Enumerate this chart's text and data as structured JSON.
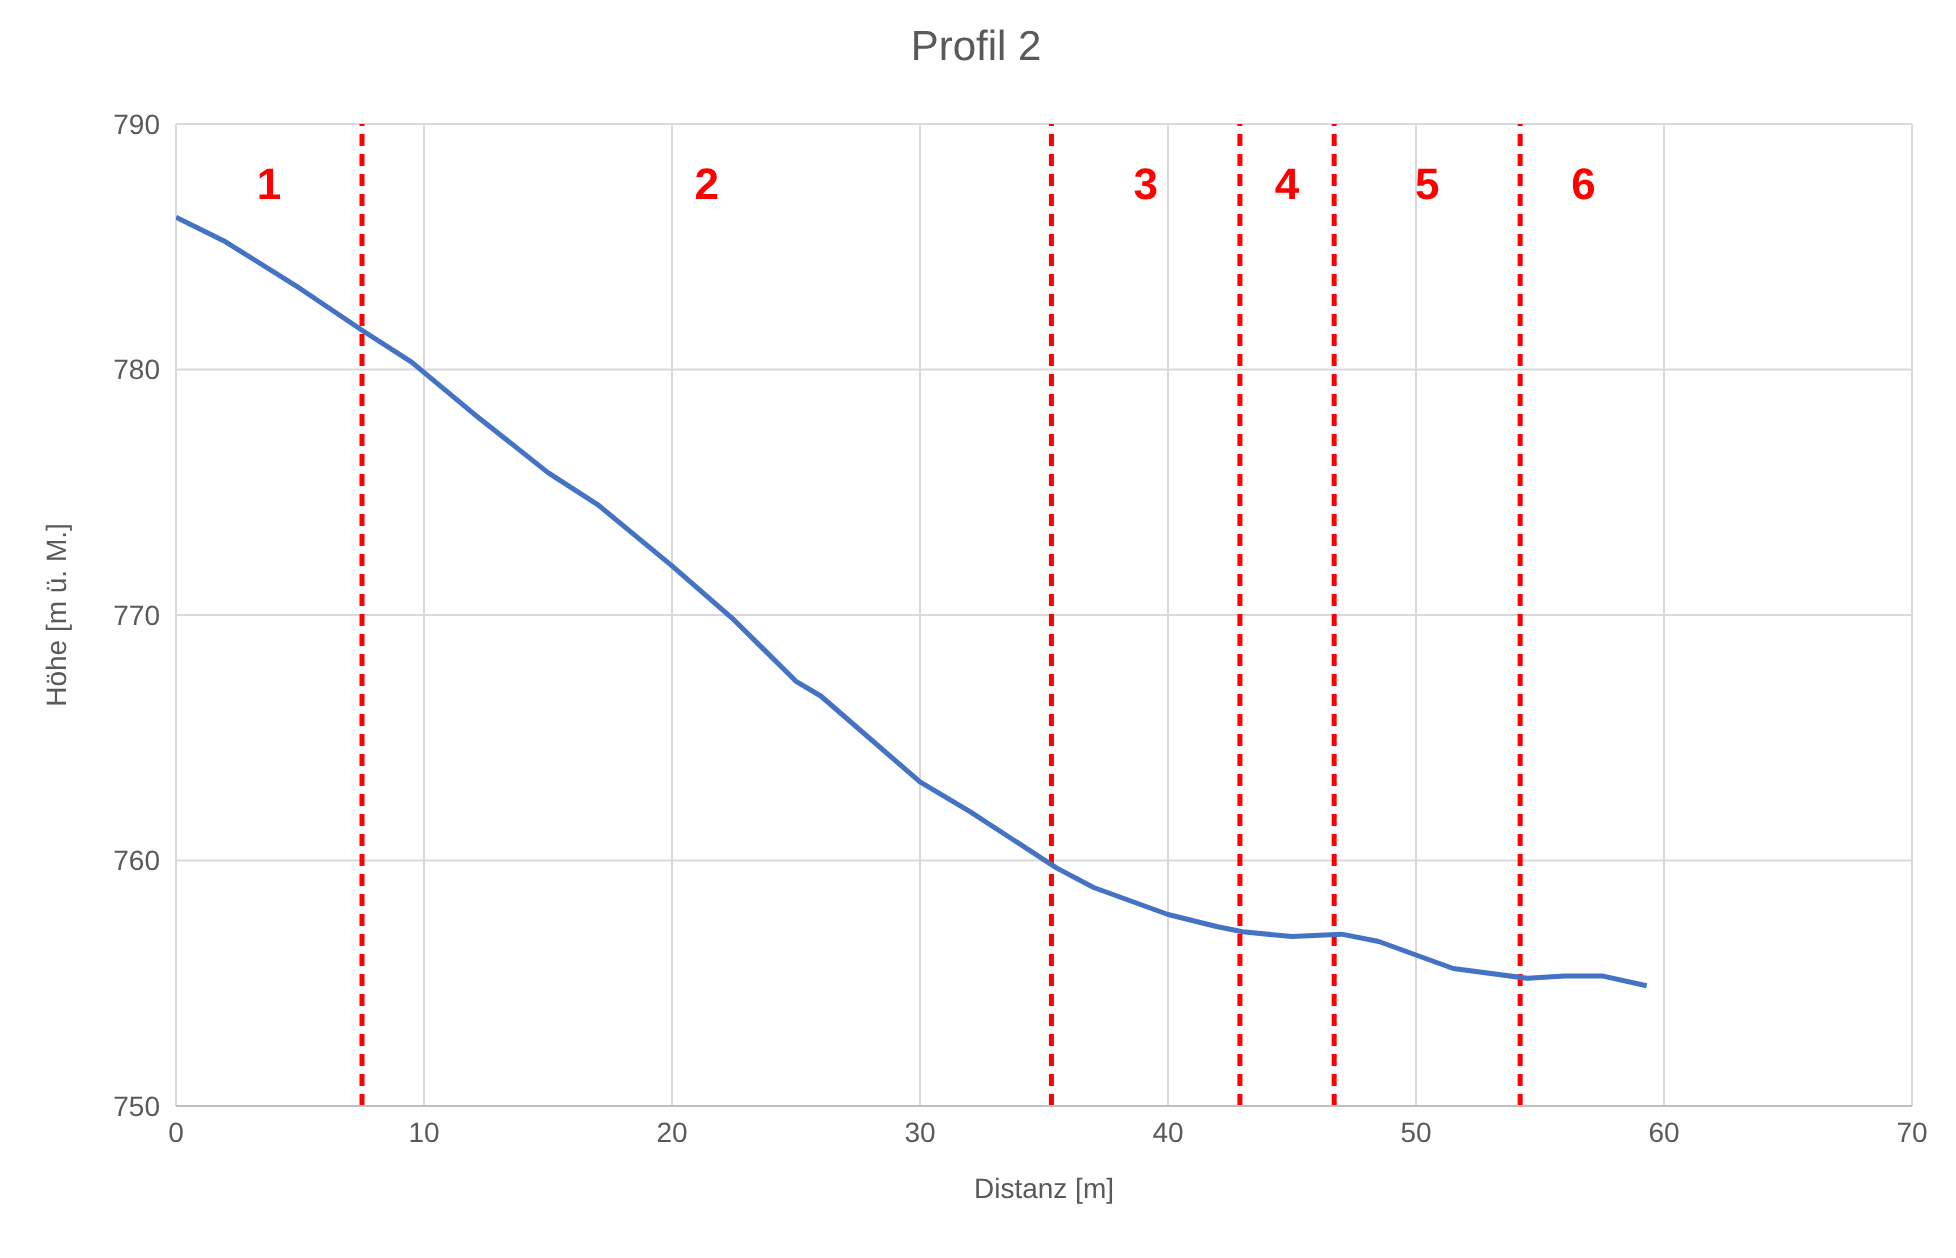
{
  "chart_data": {
    "type": "line",
    "title": "Profil 2",
    "xlabel": "Distanz [m]",
    "ylabel": "Höhe [m ü. M.]",
    "x": [
      0,
      2,
      5,
      7.5,
      9.5,
      12,
      15,
      17,
      20,
      22.5,
      25,
      26,
      30,
      32,
      35.5,
      37,
      40,
      42,
      43,
      45,
      47,
      48.5,
      51.5,
      54.5,
      56,
      57.5,
      59.3
    ],
    "series": [
      {
        "color": "#4472c4",
        "values": [
          786.2,
          785.2,
          783.3,
          781.6,
          780.3,
          778.2,
          775.8,
          774.5,
          772.0,
          769.8,
          767.3,
          766.7,
          763.2,
          762.0,
          759.7,
          758.9,
          757.8,
          757.3,
          757.1,
          756.9,
          757.0,
          756.7,
          755.6,
          755.2,
          755.3,
          755.3,
          754.9
        ]
      }
    ],
    "xlim": [
      0,
      70
    ],
    "xticks": [
      0,
      10,
      20,
      30,
      40,
      50,
      60,
      70
    ],
    "ylim": [
      750,
      790
    ],
    "yticks": [
      750,
      760,
      770,
      780,
      790
    ],
    "grid": true,
    "legend": false,
    "marker": "none",
    "line_style": "solid",
    "ref_lines": [
      {
        "axis": "x",
        "value": 7.5,
        "color": "#ff0000",
        "line_style": "dashed"
      },
      {
        "axis": "x",
        "value": 35.3,
        "color": "#ff0000",
        "line_style": "dashed"
      },
      {
        "axis": "x",
        "value": 42.9,
        "color": "#ff0000",
        "line_style": "dashed"
      },
      {
        "axis": "x",
        "value": 46.7,
        "color": "#ff0000",
        "line_style": "dashed"
      },
      {
        "axis": "x",
        "value": 54.2,
        "color": "#ff0000",
        "line_style": "dashed"
      }
    ],
    "annotations": [
      "1",
      "2",
      "3",
      "4",
      "5",
      "6"
    ]
  }
}
